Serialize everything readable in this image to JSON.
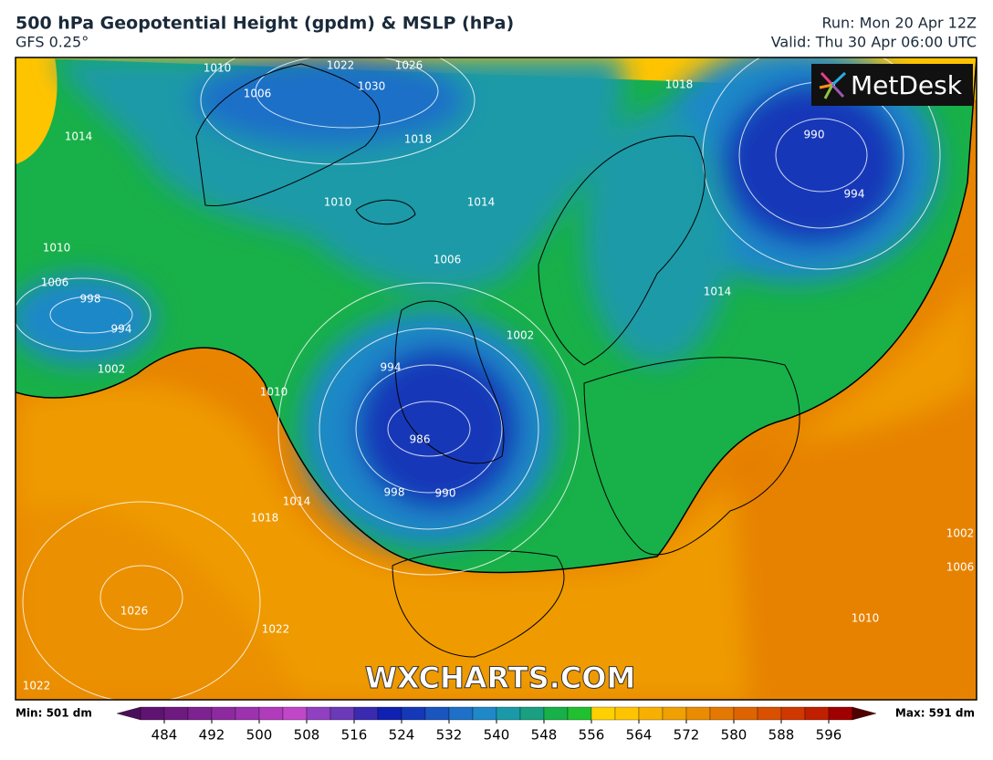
{
  "header": {
    "title": "500 hPa Geopotential Height (gpdm) & MSLP (hPa)",
    "subtitle": "GFS 0.25°",
    "run": "Run: Mon 20 Apr 12Z",
    "valid": "Valid: Thu 30 Apr 06:00 UTC"
  },
  "logo": "MetDesk",
  "watermark": "WXCHARTS.COM",
  "isobars": [
    1010,
    1022,
    1030,
    1026,
    1006,
    1018,
    1014,
    1010,
    1006,
    1002,
    994,
    986,
    990,
    998,
    1010,
    1014,
    1018,
    1022,
    1026,
    1022,
    1002,
    994,
    998,
    1006,
    1010,
    1014,
    1018,
    1014,
    990,
    994,
    1010,
    1006,
    1002
  ],
  "colorbar": {
    "min": "Min: 501 dm",
    "max": "Max: 591 dm",
    "range": [
      476,
      604
    ],
    "ticks": [
      484,
      492,
      500,
      508,
      516,
      524,
      532,
      540,
      548,
      556,
      564,
      572,
      580,
      588,
      596
    ],
    "colors": [
      "#4a0f5a",
      "#5e1470",
      "#6e1a80",
      "#7d2290",
      "#8e2aa0",
      "#9c32ae",
      "#b03cbc",
      "#c048c8",
      "#9040c0",
      "#6a3ab8",
      "#3a2ab0",
      "#1020b0",
      "#1438b8",
      "#1a55c0",
      "#1e70c8",
      "#1e88c8",
      "#1a9aa8",
      "#18a080",
      "#18b048",
      "#20c030",
      "#ffd000",
      "#ffc400",
      "#f8b000",
      "#f0a000",
      "#ea8c00",
      "#e47800",
      "#de6400",
      "#d85000",
      "#d03800",
      "#c02000",
      "#a00000",
      "#500000"
    ]
  }
}
